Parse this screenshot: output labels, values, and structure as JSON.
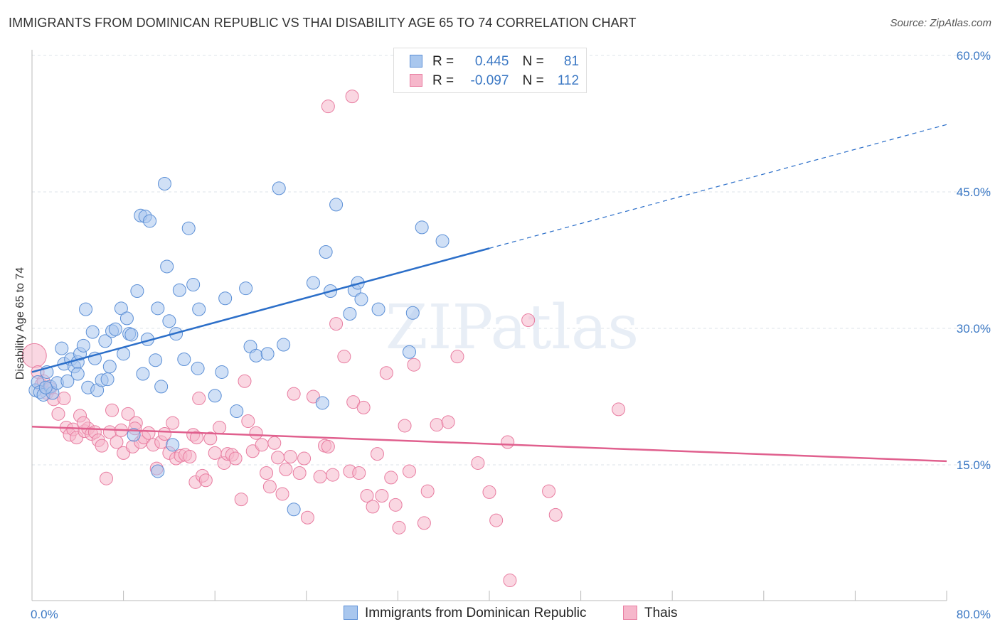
{
  "title": "IMMIGRANTS FROM DOMINICAN REPUBLIC VS THAI DISABILITY AGE 65 TO 74 CORRELATION CHART",
  "source": "Source: ZipAtlas.com",
  "watermark": "ZIPatlas",
  "colors": {
    "blue_fill": "#a9c7ee",
    "blue_stroke": "#5b8fd6",
    "blue_line": "#2c6fc9",
    "pink_fill": "#f6b7cb",
    "pink_stroke": "#e87ca0",
    "pink_line": "#e0608e",
    "axis_text": "#3b78c4"
  },
  "legend": {
    "rows": [
      {
        "r_label": "R =",
        "r_value": "0.445",
        "n_label": "N =",
        "n_value": "81"
      },
      {
        "r_label": "R =",
        "r_value": "-0.097",
        "n_label": "N =",
        "n_value": "112"
      }
    ]
  },
  "bottom_legend": {
    "blue": "Immigrants from Dominican Republic",
    "pink": "Thais"
  },
  "chart_data": {
    "type": "scatter",
    "xlabel": "",
    "ylabel": "Disability Age 65 to 74",
    "xlim": [
      0,
      80
    ],
    "ylim": [
      0,
      62
    ],
    "x_tick_labels": [
      "0.0%",
      "80.0%"
    ],
    "y_ticks": [
      15,
      30,
      45,
      60
    ],
    "y_tick_labels": [
      "15.0%",
      "30.0%",
      "45.0%",
      "60.0%"
    ],
    "grid": "dashed horizontal",
    "series": [
      {
        "name": "Immigrants from Dominican Republic",
        "trend": {
          "x0": 0,
          "y0": 25.2,
          "x1": 40,
          "y1": 38.8,
          "dash_to_x": 80,
          "dash_to_y": 52.4
        },
        "points": [
          [
            0.3,
            23.2
          ],
          [
            0.5,
            24.1
          ],
          [
            0.7,
            23.0
          ],
          [
            1.0,
            22.7
          ],
          [
            1.3,
            25.2
          ],
          [
            1.6,
            23.6
          ],
          [
            1.8,
            22.9
          ],
          [
            2.2,
            24.0
          ],
          [
            2.6,
            27.8
          ],
          [
            2.8,
            26.1
          ],
          [
            3.1,
            24.2
          ],
          [
            3.4,
            26.6
          ],
          [
            3.7,
            25.8
          ],
          [
            4.0,
            26.3
          ],
          [
            4.2,
            27.2
          ],
          [
            4.5,
            28.1
          ],
          [
            4.7,
            32.1
          ],
          [
            4.9,
            23.5
          ],
          [
            5.3,
            29.6
          ],
          [
            5.5,
            26.7
          ],
          [
            5.7,
            23.2
          ],
          [
            6.1,
            24.3
          ],
          [
            6.4,
            28.6
          ],
          [
            6.6,
            24.4
          ],
          [
            6.8,
            25.8
          ],
          [
            7.0,
            29.7
          ],
          [
            7.3,
            29.9
          ],
          [
            7.8,
            32.2
          ],
          [
            8.0,
            27.2
          ],
          [
            8.3,
            31.1
          ],
          [
            8.5,
            29.4
          ],
          [
            8.7,
            29.3
          ],
          [
            8.9,
            18.3
          ],
          [
            9.2,
            34.1
          ],
          [
            9.5,
            42.4
          ],
          [
            9.7,
            25.0
          ],
          [
            9.9,
            42.3
          ],
          [
            10.1,
            28.8
          ],
          [
            10.3,
            41.8
          ],
          [
            10.8,
            26.5
          ],
          [
            11.0,
            32.2
          ],
          [
            11.3,
            23.6
          ],
          [
            11.6,
            45.9
          ],
          [
            11.8,
            36.8
          ],
          [
            12.0,
            30.8
          ],
          [
            12.3,
            17.2
          ],
          [
            12.6,
            29.4
          ],
          [
            12.9,
            34.2
          ],
          [
            13.3,
            26.6
          ],
          [
            13.7,
            41.0
          ],
          [
            14.1,
            34.8
          ],
          [
            14.5,
            25.6
          ],
          [
            14.6,
            32.1
          ],
          [
            16.0,
            22.6
          ],
          [
            16.6,
            25.2
          ],
          [
            16.9,
            33.3
          ],
          [
            17.9,
            20.9
          ],
          [
            18.7,
            34.4
          ],
          [
            19.1,
            28.0
          ],
          [
            19.6,
            27.0
          ],
          [
            20.6,
            27.2
          ],
          [
            21.6,
            45.4
          ],
          [
            22.0,
            28.2
          ],
          [
            22.9,
            10.1
          ],
          [
            24.6,
            35.0
          ],
          [
            25.4,
            21.8
          ],
          [
            25.7,
            38.4
          ],
          [
            26.1,
            34.1
          ],
          [
            26.6,
            43.6
          ],
          [
            27.8,
            31.6
          ],
          [
            28.2,
            34.2
          ],
          [
            28.5,
            35.0
          ],
          [
            28.8,
            33.2
          ],
          [
            30.3,
            32.1
          ],
          [
            33.0,
            27.4
          ],
          [
            33.3,
            31.7
          ],
          [
            34.1,
            41.1
          ],
          [
            35.9,
            39.6
          ],
          [
            11.0,
            14.3
          ],
          [
            4.0,
            25.0
          ],
          [
            1.2,
            23.5
          ]
        ]
      },
      {
        "name": "Thais",
        "trend": {
          "x0": 0,
          "y0": 19.2,
          "x1": 80,
          "y1": 15.4
        },
        "points": [
          [
            0.2,
            27.0
          ],
          [
            0.5,
            25.2
          ],
          [
            0.8,
            23.8
          ],
          [
            1.0,
            24.2
          ],
          [
            1.3,
            22.9
          ],
          [
            1.6,
            23.4
          ],
          [
            1.9,
            22.2
          ],
          [
            2.3,
            20.6
          ],
          [
            2.8,
            22.3
          ],
          [
            3.0,
            19.1
          ],
          [
            3.3,
            18.3
          ],
          [
            3.6,
            18.9
          ],
          [
            3.9,
            18.0
          ],
          [
            4.2,
            20.4
          ],
          [
            4.6,
            18.7
          ],
          [
            4.9,
            19.0
          ],
          [
            5.2,
            18.4
          ],
          [
            5.5,
            18.6
          ],
          [
            5.8,
            17.7
          ],
          [
            6.1,
            17.1
          ],
          [
            6.5,
            13.5
          ],
          [
            6.8,
            18.6
          ],
          [
            7.0,
            21.0
          ],
          [
            7.4,
            17.5
          ],
          [
            7.8,
            18.8
          ],
          [
            8.0,
            16.3
          ],
          [
            8.4,
            20.6
          ],
          [
            8.8,
            17.0
          ],
          [
            9.1,
            19.6
          ],
          [
            9.5,
            17.5
          ],
          [
            9.8,
            18.0
          ],
          [
            10.2,
            18.5
          ],
          [
            10.6,
            17.2
          ],
          [
            10.9,
            14.6
          ],
          [
            11.3,
            17.5
          ],
          [
            11.6,
            18.4
          ],
          [
            12.0,
            16.3
          ],
          [
            12.3,
            19.6
          ],
          [
            12.6,
            15.7
          ],
          [
            13.0,
            16.0
          ],
          [
            13.4,
            16.1
          ],
          [
            13.8,
            15.9
          ],
          [
            14.1,
            18.3
          ],
          [
            14.3,
            13.1
          ],
          [
            14.6,
            22.3
          ],
          [
            14.9,
            13.8
          ],
          [
            15.2,
            13.3
          ],
          [
            15.6,
            17.9
          ],
          [
            16.0,
            16.3
          ],
          [
            16.4,
            19.1
          ],
          [
            16.8,
            15.2
          ],
          [
            17.1,
            16.2
          ],
          [
            17.5,
            16.1
          ],
          [
            17.8,
            15.7
          ],
          [
            18.3,
            11.2
          ],
          [
            18.6,
            24.2
          ],
          [
            18.9,
            19.8
          ],
          [
            19.3,
            16.5
          ],
          [
            19.6,
            18.5
          ],
          [
            20.1,
            17.2
          ],
          [
            20.5,
            14.1
          ],
          [
            20.8,
            12.6
          ],
          [
            21.2,
            17.4
          ],
          [
            21.5,
            15.8
          ],
          [
            21.9,
            11.8
          ],
          [
            22.2,
            14.5
          ],
          [
            22.6,
            15.9
          ],
          [
            22.9,
            22.8
          ],
          [
            23.4,
            14.1
          ],
          [
            23.8,
            15.7
          ],
          [
            24.1,
            9.2
          ],
          [
            24.6,
            22.5
          ],
          [
            25.2,
            13.7
          ],
          [
            25.6,
            17.1
          ],
          [
            25.9,
            17.0
          ],
          [
            26.3,
            13.9
          ],
          [
            26.6,
            30.5
          ],
          [
            27.3,
            26.9
          ],
          [
            27.8,
            14.3
          ],
          [
            28.1,
            21.9
          ],
          [
            28.6,
            14.1
          ],
          [
            29.0,
            21.3
          ],
          [
            29.3,
            11.6
          ],
          [
            29.8,
            10.4
          ],
          [
            30.2,
            16.2
          ],
          [
            30.6,
            11.6
          ],
          [
            31.0,
            25.1
          ],
          [
            31.4,
            13.6
          ],
          [
            31.8,
            10.6
          ],
          [
            32.1,
            8.1
          ],
          [
            32.6,
            19.3
          ],
          [
            33.0,
            14.3
          ],
          [
            33.4,
            26.0
          ],
          [
            34.3,
            8.6
          ],
          [
            34.6,
            12.1
          ],
          [
            35.4,
            19.4
          ],
          [
            36.4,
            19.7
          ],
          [
            37.2,
            26.9
          ],
          [
            39.0,
            15.2
          ],
          [
            40.0,
            12.0
          ],
          [
            40.6,
            8.9
          ],
          [
            41.6,
            17.5
          ],
          [
            43.4,
            30.9
          ],
          [
            45.2,
            12.1
          ],
          [
            45.8,
            9.5
          ],
          [
            51.3,
            21.1
          ],
          [
            28.0,
            55.5
          ],
          [
            25.9,
            54.4
          ],
          [
            41.8,
            2.3
          ],
          [
            14.4,
            18.0
          ],
          [
            9.0,
            19.0
          ],
          [
            4.5,
            19.6
          ]
        ]
      }
    ]
  }
}
